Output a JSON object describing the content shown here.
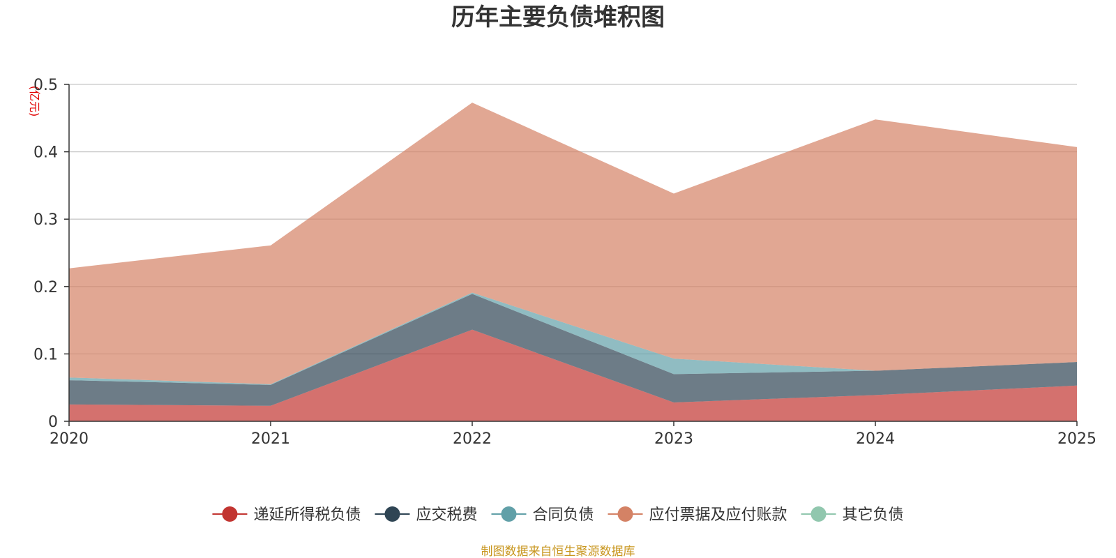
{
  "chart_data": {
    "type": "area",
    "stacked": true,
    "title": "历年主要负债堆积图",
    "unit_label": "(亿元)",
    "x": [
      "2020",
      "2021",
      "2022",
      "2023",
      "2024",
      "2025"
    ],
    "ylim": [
      0,
      0.5
    ],
    "yticks": [
      "0",
      "0.1",
      "0.2",
      "0.3",
      "0.4",
      "0.5"
    ],
    "grid": true,
    "legend_position": "bottom-center",
    "series": [
      {
        "name": "递延所得税负债",
        "color": "#c23531",
        "values": [
          0.025,
          0.023,
          0.136,
          0.028,
          0.039,
          0.053
        ]
      },
      {
        "name": "应交税费",
        "color": "#2f4554",
        "values": [
          0.036,
          0.031,
          0.053,
          0.042,
          0.036,
          0.035
        ]
      },
      {
        "name": "合同负债",
        "color": "#61a0a8",
        "values": [
          0.004,
          0.001,
          0.002,
          0.023,
          0.0,
          0.0
        ]
      },
      {
        "name": "应付票据及应付账款",
        "color": "#d48265",
        "values": [
          0.162,
          0.206,
          0.282,
          0.245,
          0.373,
          0.319
        ]
      },
      {
        "name": "其它负债",
        "color": "#91c7ae",
        "values": [
          0,
          0,
          0,
          0,
          0,
          0
        ]
      }
    ],
    "source": "制图数据来自恒生聚源数据库"
  }
}
